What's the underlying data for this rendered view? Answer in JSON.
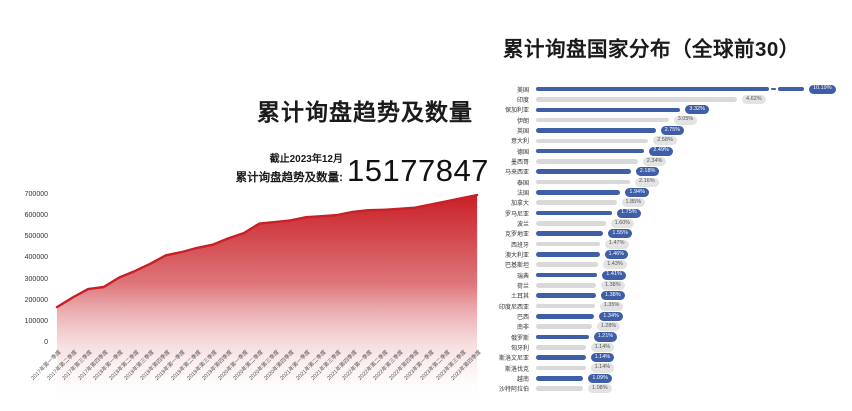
{
  "colors": {
    "area_red": "#c92027",
    "bar_blue": "#3e5ea7",
    "bar_gray": "#d9d9d9",
    "badge_gray_bg": "#e3e3e3"
  },
  "trend_panel": {
    "title": "累计询盘趋势及数量",
    "as_of_label": "截止2023年12月",
    "total_label": "累计询盘趋势及数量:",
    "total_value": "15177847"
  },
  "country_panel": {
    "title": "累计询盘国家分布（全球前30）"
  },
  "chart_data": [
    {
      "type": "area",
      "title": "累计询盘趋势及数量",
      "xlabel": "",
      "ylabel": "",
      "ylim": [
        0,
        700000
      ],
      "yticks": [
        0,
        100000,
        200000,
        300000,
        400000,
        500000,
        600000,
        700000
      ],
      "grid": false,
      "area_color": "#c92027",
      "x": [
        "2017年第一季度",
        "2017年第二季度",
        "2017年第三季度",
        "2017年第四季度",
        "2018年第一季度",
        "2018年第二季度",
        "2018年第三季度",
        "2018年第四季度",
        "2019年第一季度",
        "2019年第二季度",
        "2019年第三季度",
        "2019年第四季度",
        "2020年第一季度",
        "2020年第二季度",
        "2020年第三季度",
        "2020年第四季度",
        "2021年第一季度",
        "2021年第二季度",
        "2021年第三季度",
        "2021年第四季度",
        "2022年第一季度",
        "2022年第二季度",
        "2022年第三季度",
        "2022年第四季度",
        "2023年第一季度",
        "2023年第二季度",
        "2023年第三季度",
        "2023年第四季度"
      ],
      "values": [
        170000,
        215000,
        255000,
        265000,
        310000,
        340000,
        375000,
        415000,
        430000,
        450000,
        465000,
        495000,
        520000,
        565000,
        572000,
        580000,
        595000,
        600000,
        605000,
        620000,
        628000,
        630000,
        635000,
        640000,
        655000,
        670000,
        685000,
        700000
      ]
    },
    {
      "type": "bar",
      "orientation": "horizontal",
      "title": "累计询盘国家分布（全球前30）",
      "legend_position": "none",
      "categories": [
        "美国",
        "印度",
        "保加利亚",
        "伊朗",
        "英国",
        "意大利",
        "德国",
        "墨西哥",
        "马来西亚",
        "泰国",
        "法国",
        "加拿大",
        "罗马尼亚",
        "波兰",
        "克罗地亚",
        "西班牙",
        "澳大利亚",
        "巴基斯坦",
        "瑞典",
        "荷兰",
        "土耳其",
        "印度尼西亚",
        "巴西",
        "南非",
        "俄罗斯",
        "匈牙利",
        "斯洛文尼亚",
        "斯洛伐克",
        "越南",
        "沙特阿拉伯"
      ],
      "values": [
        10.19,
        4.62,
        3.32,
        3.05,
        2.75,
        2.58,
        2.49,
        2.34,
        2.18,
        2.16,
        1.94,
        1.85,
        1.75,
        1.6,
        1.55,
        1.47,
        1.46,
        1.43,
        1.41,
        1.38,
        1.38,
        1.35,
        1.34,
        1.28,
        1.21,
        1.14,
        1.14,
        1.14,
        1.09,
        1.08
      ],
      "data_labels": [
        "10.19%",
        "4.62%",
        "3.32%",
        "3.05%",
        "2.75%",
        "2.58%",
        "2.49%",
        "2.34%",
        "2.18%",
        "2.16%",
        "1.94%",
        "1.85%",
        "1.75%",
        "1.60%",
        "1.55%",
        "1.47%",
        "1.46%",
        "1.43%",
        "1.41%",
        "1.38%",
        "1.38%",
        "1.35%",
        "1.34%",
        "1.28%",
        "1.21%",
        "1.14%",
        "1.14%",
        "1.14%",
        "1.09%",
        "1.08%"
      ]
    }
  ]
}
